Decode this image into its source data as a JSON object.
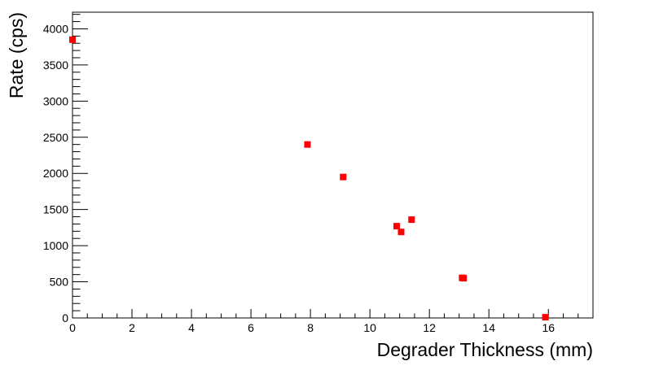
{
  "chart_data": {
    "type": "scatter",
    "title": "",
    "xlabel": "Degrader Thickness (mm)",
    "ylabel": "Rate (cps)",
    "xlim": [
      0,
      17.5
    ],
    "ylim": [
      0,
      4230
    ],
    "x_ticks": [
      0,
      2,
      4,
      6,
      8,
      10,
      12,
      14,
      16
    ],
    "y_ticks": [
      0,
      500,
      1000,
      1500,
      2000,
      2500,
      3000,
      3500,
      4000
    ],
    "x_tick_labels": [
      "0",
      "2",
      "4",
      "6",
      "8",
      "10",
      "12",
      "14",
      "16"
    ],
    "y_tick_labels": [
      "0",
      "500",
      "1000",
      "1500",
      "2000",
      "2500",
      "3000",
      "3500",
      "4000"
    ],
    "grid": false,
    "marker_color": "#ff0000",
    "series": [
      {
        "points": [
          {
            "x": 0.0,
            "y": 3850
          },
          {
            "x": 7.9,
            "y": 2400
          },
          {
            "x": 9.1,
            "y": 1950
          },
          {
            "x": 10.9,
            "y": 1270
          },
          {
            "x": 11.05,
            "y": 1190
          },
          {
            "x": 11.4,
            "y": 1360
          },
          {
            "x": 13.1,
            "y": 555
          },
          {
            "x": 13.15,
            "y": 550
          },
          {
            "x": 15.9,
            "y": 10
          }
        ]
      }
    ]
  }
}
